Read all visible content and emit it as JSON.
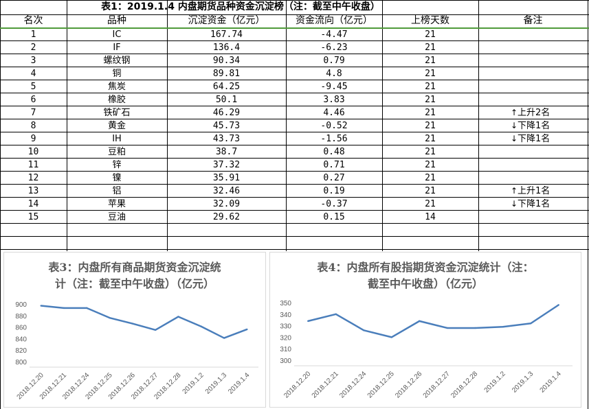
{
  "title": "表1：2019.1.4 内盘期货品种资金沉淀榜（注：截至中午收盘）",
  "headers": {
    "rank": "名次",
    "name": "品种",
    "amount": "沉淀资金（亿元）",
    "flow": "资金流向（亿元）",
    "days": "上榜天数",
    "note": "备注"
  },
  "rows": [
    {
      "rank": "1",
      "name": "IC",
      "amount": "167.74",
      "flow": "-4.47",
      "days": "21",
      "arrow": "",
      "note": ""
    },
    {
      "rank": "2",
      "name": "IF",
      "amount": "136.4",
      "flow": "-6.23",
      "days": "21",
      "arrow": "",
      "note": ""
    },
    {
      "rank": "3",
      "name": "螺纹钢",
      "amount": "90.34",
      "flow": "0.79",
      "days": "21",
      "arrow": "",
      "note": ""
    },
    {
      "rank": "4",
      "name": "铜",
      "amount": "89.81",
      "flow": "4.8",
      "days": "21",
      "arrow": "",
      "note": ""
    },
    {
      "rank": "5",
      "name": "焦炭",
      "amount": "64.25",
      "flow": "-9.45",
      "days": "21",
      "arrow": "",
      "note": ""
    },
    {
      "rank": "6",
      "name": "橡胶",
      "amount": "50.1",
      "flow": "3.83",
      "days": "21",
      "arrow": "",
      "note": ""
    },
    {
      "rank": "7",
      "name": "铁矿石",
      "amount": "46.29",
      "flow": "4.46",
      "days": "21",
      "arrow": "↑",
      "note": "上升2名"
    },
    {
      "rank": "8",
      "name": "黄金",
      "amount": "45.73",
      "flow": "-0.52",
      "days": "21",
      "arrow": "↓",
      "note": "下降1名"
    },
    {
      "rank": "9",
      "name": "IH",
      "amount": "43.73",
      "flow": "-1.56",
      "days": "21",
      "arrow": "↓",
      "note": "下降1名"
    },
    {
      "rank": "10",
      "name": "豆粕",
      "amount": "38.7",
      "flow": "0.48",
      "days": "21",
      "arrow": "",
      "note": ""
    },
    {
      "rank": "11",
      "name": "锌",
      "amount": "37.32",
      "flow": "0.71",
      "days": "21",
      "arrow": "",
      "note": ""
    },
    {
      "rank": "12",
      "name": "镍",
      "amount": "35.91",
      "flow": "0.27",
      "days": "21",
      "arrow": "",
      "note": ""
    },
    {
      "rank": "13",
      "name": "铝",
      "amount": "32.46",
      "flow": "0.19",
      "days": "21",
      "arrow": "↑",
      "note": "上升1名"
    },
    {
      "rank": "14",
      "name": "苹果",
      "amount": "32.09",
      "flow": "-0.37",
      "days": "21",
      "arrow": "↓",
      "note": "下降1名"
    },
    {
      "rank": "15",
      "name": "豆油",
      "amount": "29.62",
      "flow": "0.15",
      "days": "14",
      "arrow": "",
      "note": ""
    }
  ],
  "colors": {
    "line": "#4a7ebb",
    "axis_text": "#595959",
    "gridline": "#d9d9d9",
    "header_underline": "#4f9a3a"
  },
  "chart_data": [
    {
      "type": "line",
      "title": "表3：内盘所有商品期货资金沉淀统计（注：截至中午收盘）（亿元）",
      "title_lines": [
        "表3：内盘所有商品期货资金沉淀统",
        "计（注：截至中午收盘）（亿元）"
      ],
      "categories": [
        "2018.12.20",
        "2018.12.21",
        "2018.12.24",
        "2018.12.25",
        "2018.12.26",
        "2018.12.27",
        "2018.12.28",
        "2019.1.2",
        "2019.1.3",
        "2019.1.4"
      ],
      "values": [
        897,
        893,
        893,
        876,
        866,
        855,
        878,
        861,
        841,
        856
      ],
      "ylim": [
        800,
        900
      ],
      "yticks": [
        800,
        820,
        840,
        860,
        880,
        900
      ],
      "grid": false
    },
    {
      "type": "line",
      "title": "表4：内盘所有股指期货资金沉淀统计（注：截至中午收盘）（亿元）",
      "title_lines": [
        "表4：内盘所有股指期货资金沉淀统计（注：",
        "截至中午收盘）（亿元）"
      ],
      "categories": [
        "2018.12.20",
        "2018.12.21",
        "2018.12.24",
        "2018.12.25",
        "2018.12.26",
        "2018.12.27",
        "2018.12.28",
        "2019.1.2",
        "2019.1.3",
        "2019.1.4"
      ],
      "values": [
        334,
        340,
        326,
        320,
        334,
        328,
        328,
        329,
        332,
        348
      ],
      "ylim": [
        300,
        350
      ],
      "yticks": [
        300,
        310,
        320,
        330,
        340,
        350
      ],
      "grid": false
    }
  ]
}
